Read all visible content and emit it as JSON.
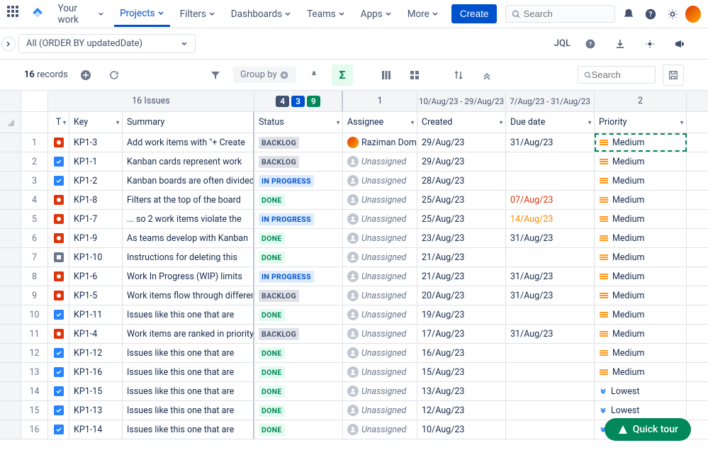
{
  "nav": {
    "your_work": "Your work",
    "projects": "Projects",
    "filters": "Filters",
    "dashboards": "Dashboards",
    "teams": "Teams",
    "apps": "Apps",
    "more": "More",
    "create": "Create",
    "search_placeholder": "Search"
  },
  "subbar": {
    "filter_text": "All (ORDER BY updatedDate)",
    "jql": "JQL"
  },
  "toolbar": {
    "records_count": "16",
    "records_label": "records",
    "group_by": "Group by",
    "search_placeholder": "Search"
  },
  "sumheader": {
    "issues": "16 Issues",
    "badge1": "4",
    "badge2": "3",
    "badge3": "9",
    "assignee_count": "1",
    "created_range": "10/Aug/23 - 29/Aug/23",
    "due_range": "7/Aug/23 - 31/Aug/23",
    "priority_count": "2"
  },
  "columns": {
    "type": "T",
    "key": "Key",
    "summary": "Summary",
    "status": "Status",
    "assignee": "Assignee",
    "created": "Created",
    "due": "Due date",
    "priority": "Priority"
  },
  "unassigned": "Unassigned",
  "rows": [
    {
      "n": "1",
      "type": "bug",
      "key": "KP1-3",
      "summary": "Add work items with \"+ Create",
      "status": "BACKLOG",
      "status_class": "backlog",
      "assignee": "Raziman Dom",
      "assigned": true,
      "created": "29/Aug/23",
      "due": "31/Aug/23",
      "due_class": "",
      "priority": "Medium",
      "pclass": "medium",
      "highlight": true
    },
    {
      "n": "2",
      "type": "task",
      "key": "KP1-1",
      "summary": "Kanban cards represent work",
      "status": "BACKLOG",
      "status_class": "backlog",
      "assignee": "",
      "assigned": false,
      "created": "29/Aug/23",
      "due": "",
      "due_class": "",
      "priority": "Medium",
      "pclass": "medium"
    },
    {
      "n": "3",
      "type": "task",
      "key": "KP1-2",
      "summary": "Kanban boards are often divided",
      "status": "IN PROGRESS",
      "status_class": "progress",
      "assignee": "",
      "assigned": false,
      "created": "28/Aug/23",
      "due": "",
      "due_class": "",
      "priority": "Medium",
      "pclass": "medium"
    },
    {
      "n": "4",
      "type": "bug",
      "key": "KP1-8",
      "summary": "Filters at the top of the board",
      "status": "DONE",
      "status_class": "done",
      "assignee": "",
      "assigned": false,
      "created": "25/Aug/23",
      "due": "07/Aug/23",
      "due_class": "due-red",
      "priority": "Medium",
      "pclass": "medium"
    },
    {
      "n": "5",
      "type": "bug",
      "key": "KP1-7",
      "summary": "... so 2 work items violate the",
      "status": "IN PROGRESS",
      "status_class": "progress",
      "assignee": "",
      "assigned": false,
      "created": "25/Aug/23",
      "due": "14/Aug/23",
      "due_class": "due-amber",
      "priority": "Medium",
      "pclass": "medium"
    },
    {
      "n": "6",
      "type": "bug",
      "key": "KP1-9",
      "summary": "As teams develop with Kanban",
      "status": "DONE",
      "status_class": "done",
      "assignee": "",
      "assigned": false,
      "created": "23/Aug/23",
      "due": "31/Aug/23",
      "due_class": "",
      "priority": "Medium",
      "pclass": "medium"
    },
    {
      "n": "7",
      "type": "sub",
      "key": "KP1-10",
      "summary": "Instructions for deleting this",
      "status": "DONE",
      "status_class": "done",
      "assignee": "",
      "assigned": false,
      "created": "21/Aug/23",
      "due": "",
      "due_class": "",
      "priority": "Medium",
      "pclass": "medium"
    },
    {
      "n": "8",
      "type": "bug",
      "key": "KP1-6",
      "summary": "Work In Progress (WIP) limits",
      "status": "IN PROGRESS",
      "status_class": "progress",
      "assignee": "",
      "assigned": false,
      "created": "21/Aug/23",
      "due": "31/Aug/23",
      "due_class": "",
      "priority": "Medium",
      "pclass": "medium"
    },
    {
      "n": "9",
      "type": "bug",
      "key": "KP1-5",
      "summary": "Work items flow through different",
      "status": "BACKLOG",
      "status_class": "backlog",
      "assignee": "",
      "assigned": false,
      "created": "20/Aug/23",
      "due": "31/Aug/23",
      "due_class": "",
      "priority": "Medium",
      "pclass": "medium"
    },
    {
      "n": "10",
      "type": "task",
      "key": "KP1-11",
      "summary": "Issues like this one that are",
      "status": "DONE",
      "status_class": "done",
      "assignee": "",
      "assigned": false,
      "created": "19/Aug/23",
      "due": "",
      "due_class": "",
      "priority": "Medium",
      "pclass": "medium"
    },
    {
      "n": "11",
      "type": "bug",
      "key": "KP1-4",
      "summary": "Work items are ranked in priority",
      "status": "BACKLOG",
      "status_class": "backlog",
      "assignee": "",
      "assigned": false,
      "created": "17/Aug/23",
      "due": "31/Aug/23",
      "due_class": "",
      "priority": "Medium",
      "pclass": "medium"
    },
    {
      "n": "12",
      "type": "task",
      "key": "KP1-12",
      "summary": "Issues like this one that are",
      "status": "DONE",
      "status_class": "done",
      "assignee": "",
      "assigned": false,
      "created": "16/Aug/23",
      "due": "",
      "due_class": "",
      "priority": "Medium",
      "pclass": "medium"
    },
    {
      "n": "13",
      "type": "task",
      "key": "KP1-16",
      "summary": "Issues like this one that are",
      "status": "DONE",
      "status_class": "done",
      "assignee": "",
      "assigned": false,
      "created": "15/Aug/23",
      "due": "",
      "due_class": "",
      "priority": "Medium",
      "pclass": "medium"
    },
    {
      "n": "14",
      "type": "task",
      "key": "KP1-15",
      "summary": "Issues like this one that are",
      "status": "DONE",
      "status_class": "done",
      "assignee": "",
      "assigned": false,
      "created": "13/Aug/23",
      "due": "",
      "due_class": "",
      "priority": "Lowest",
      "pclass": "lowest"
    },
    {
      "n": "15",
      "type": "task",
      "key": "KP1-13",
      "summary": "Issues like this one that are",
      "status": "DONE",
      "status_class": "done",
      "assignee": "",
      "assigned": false,
      "created": "12/Aug/23",
      "due": "",
      "due_class": "",
      "priority": "Lowest",
      "pclass": "lowest"
    },
    {
      "n": "16",
      "type": "task",
      "key": "KP1-14",
      "summary": "Issues like this one that are",
      "status": "DONE",
      "status_class": "done",
      "assignee": "",
      "assigned": false,
      "created": "10/Aug/23",
      "due": "",
      "due_class": "",
      "priority": "Lowest",
      "pclass": "lowest"
    }
  ],
  "quick_tour": "Quick tour"
}
